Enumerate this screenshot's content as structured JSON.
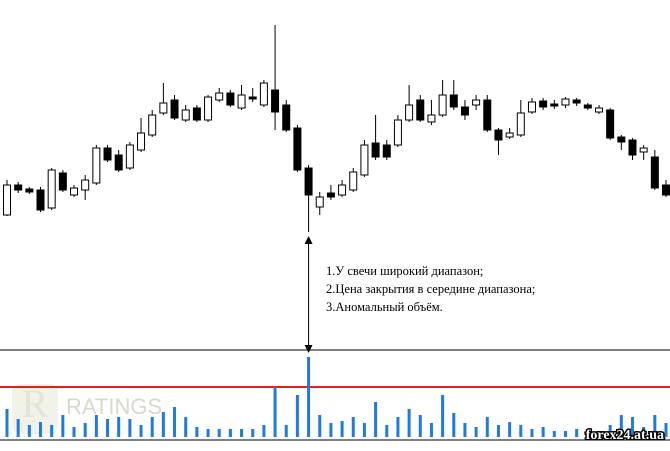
{
  "chart_data": {
    "type": "candlestick",
    "open": [
      235,
      265,
      261,
      260,
      242,
      277,
      255,
      260,
      267,
      302,
      295,
      282,
      300,
      315,
      337,
      350,
      330,
      342,
      330,
      350,
      357,
      342,
      353,
      345,
      360,
      345,
      322,
      282,
      243,
      257,
      255,
      260,
      275,
      307,
      305,
      305,
      330,
      350,
      328,
      335,
      355,
      343,
      345,
      350,
      320,
      313,
      315,
      338,
      349,
      346,
      345,
      350,
      345,
      338,
      340,
      313,
      310,
      298,
      293,
      265
    ],
    "high": [
      270,
      268,
      263,
      263,
      282,
      280,
      265,
      275,
      305,
      305,
      300,
      308,
      332,
      340,
      367,
      355,
      345,
      345,
      355,
      362,
      360,
      365,
      362,
      370,
      425,
      350,
      325,
      285,
      258,
      265,
      270,
      282,
      310,
      335,
      310,
      335,
      365,
      355,
      350,
      370,
      370,
      350,
      355,
      355,
      322,
      322,
      350,
      352,
      352,
      350,
      353,
      352,
      347,
      345,
      342,
      315,
      312,
      305,
      300,
      270
    ],
    "low": [
      234,
      257,
      256,
      238,
      240,
      258,
      253,
      250,
      265,
      288,
      278,
      280,
      298,
      313,
      335,
      330,
      328,
      328,
      328,
      348,
      343,
      340,
      348,
      343,
      320,
      318,
      278,
      218,
      235,
      250,
      253,
      258,
      273,
      290,
      290,
      303,
      328,
      328,
      325,
      333,
      340,
      330,
      340,
      318,
      295,
      311,
      313,
      336,
      340,
      341,
      342,
      344,
      340,
      336,
      310,
      300,
      290,
      290,
      260,
      253
    ],
    "close": [
      265,
      260,
      258,
      240,
      280,
      260,
      262,
      270,
      302,
      290,
      280,
      305,
      317,
      335,
      347,
      332,
      340,
      330,
      353,
      357,
      345,
      355,
      351,
      367,
      338,
      320,
      280,
      255,
      253,
      253,
      265,
      278,
      305,
      293,
      293,
      330,
      345,
      330,
      335,
      355,
      343,
      335,
      350,
      320,
      310,
      317,
      337,
      348,
      343,
      344,
      351,
      347,
      342,
      342,
      312,
      308,
      295,
      302,
      262,
      255
    ],
    "volume": [
      28,
      18,
      12,
      15,
      12,
      22,
      10,
      14,
      22,
      18,
      20,
      18,
      12,
      20,
      25,
      30,
      20,
      10,
      8,
      8,
      8,
      8,
      8,
      12,
      50,
      12,
      42,
      80,
      22,
      14,
      16,
      20,
      14,
      35,
      12,
      20,
      28,
      22,
      14,
      42,
      24,
      14,
      10,
      20,
      12,
      15,
      12,
      8,
      10,
      6,
      6,
      8,
      4,
      4,
      12,
      22,
      20,
      10,
      22,
      14
    ],
    "up_color": "#ffffff",
    "down_color": "#000000",
    "volume_color": "#1e7be0",
    "ylim": [
      0,
      450
    ],
    "y2lim": [
      0,
      437
    ],
    "threshold": {
      "value": 50,
      "color": "#e02020"
    },
    "annotation_index": 27,
    "annotations": [
      "1.У свечи широкий диапазон;",
      "2.Цена закрытия в середине диапазона;",
      "3.Аномальный объём."
    ],
    "watermark_logo": "R",
    "watermark": "RATINGS",
    "site": "forex24.at.ua"
  }
}
